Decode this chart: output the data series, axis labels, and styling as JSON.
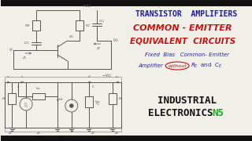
{
  "bg_color": "#f0efe8",
  "title1": "TRANSISTOR  AMPLIFIERS",
  "title1_color": "#1a1aaa",
  "title2": "COMMON - EMITTER",
  "title2_color": "#cc1111",
  "title3": "EQUIVALENT  CIRCUITS",
  "title3_color": "#cc1111",
  "subtitle1": "Fixed  Bias   Common- Emitter",
  "subtitle1_color": "#2222bb",
  "subtitle2": "Amplifier",
  "subtitle2_color": "#2222bb",
  "without_text": "without",
  "without_color": "#cc1111",
  "rece_text": "R",
  "ce_text": "and C",
  "rece_color": "#2222bb",
  "footer1": "INDUSTRIAL",
  "footer2": "ELECTRONICS",
  "footer_color": "#111111",
  "footer_n5": "N5",
  "footer_n5_color": "#22aa22",
  "circuit_color": "#555555",
  "border_top_bottom": "#111111"
}
